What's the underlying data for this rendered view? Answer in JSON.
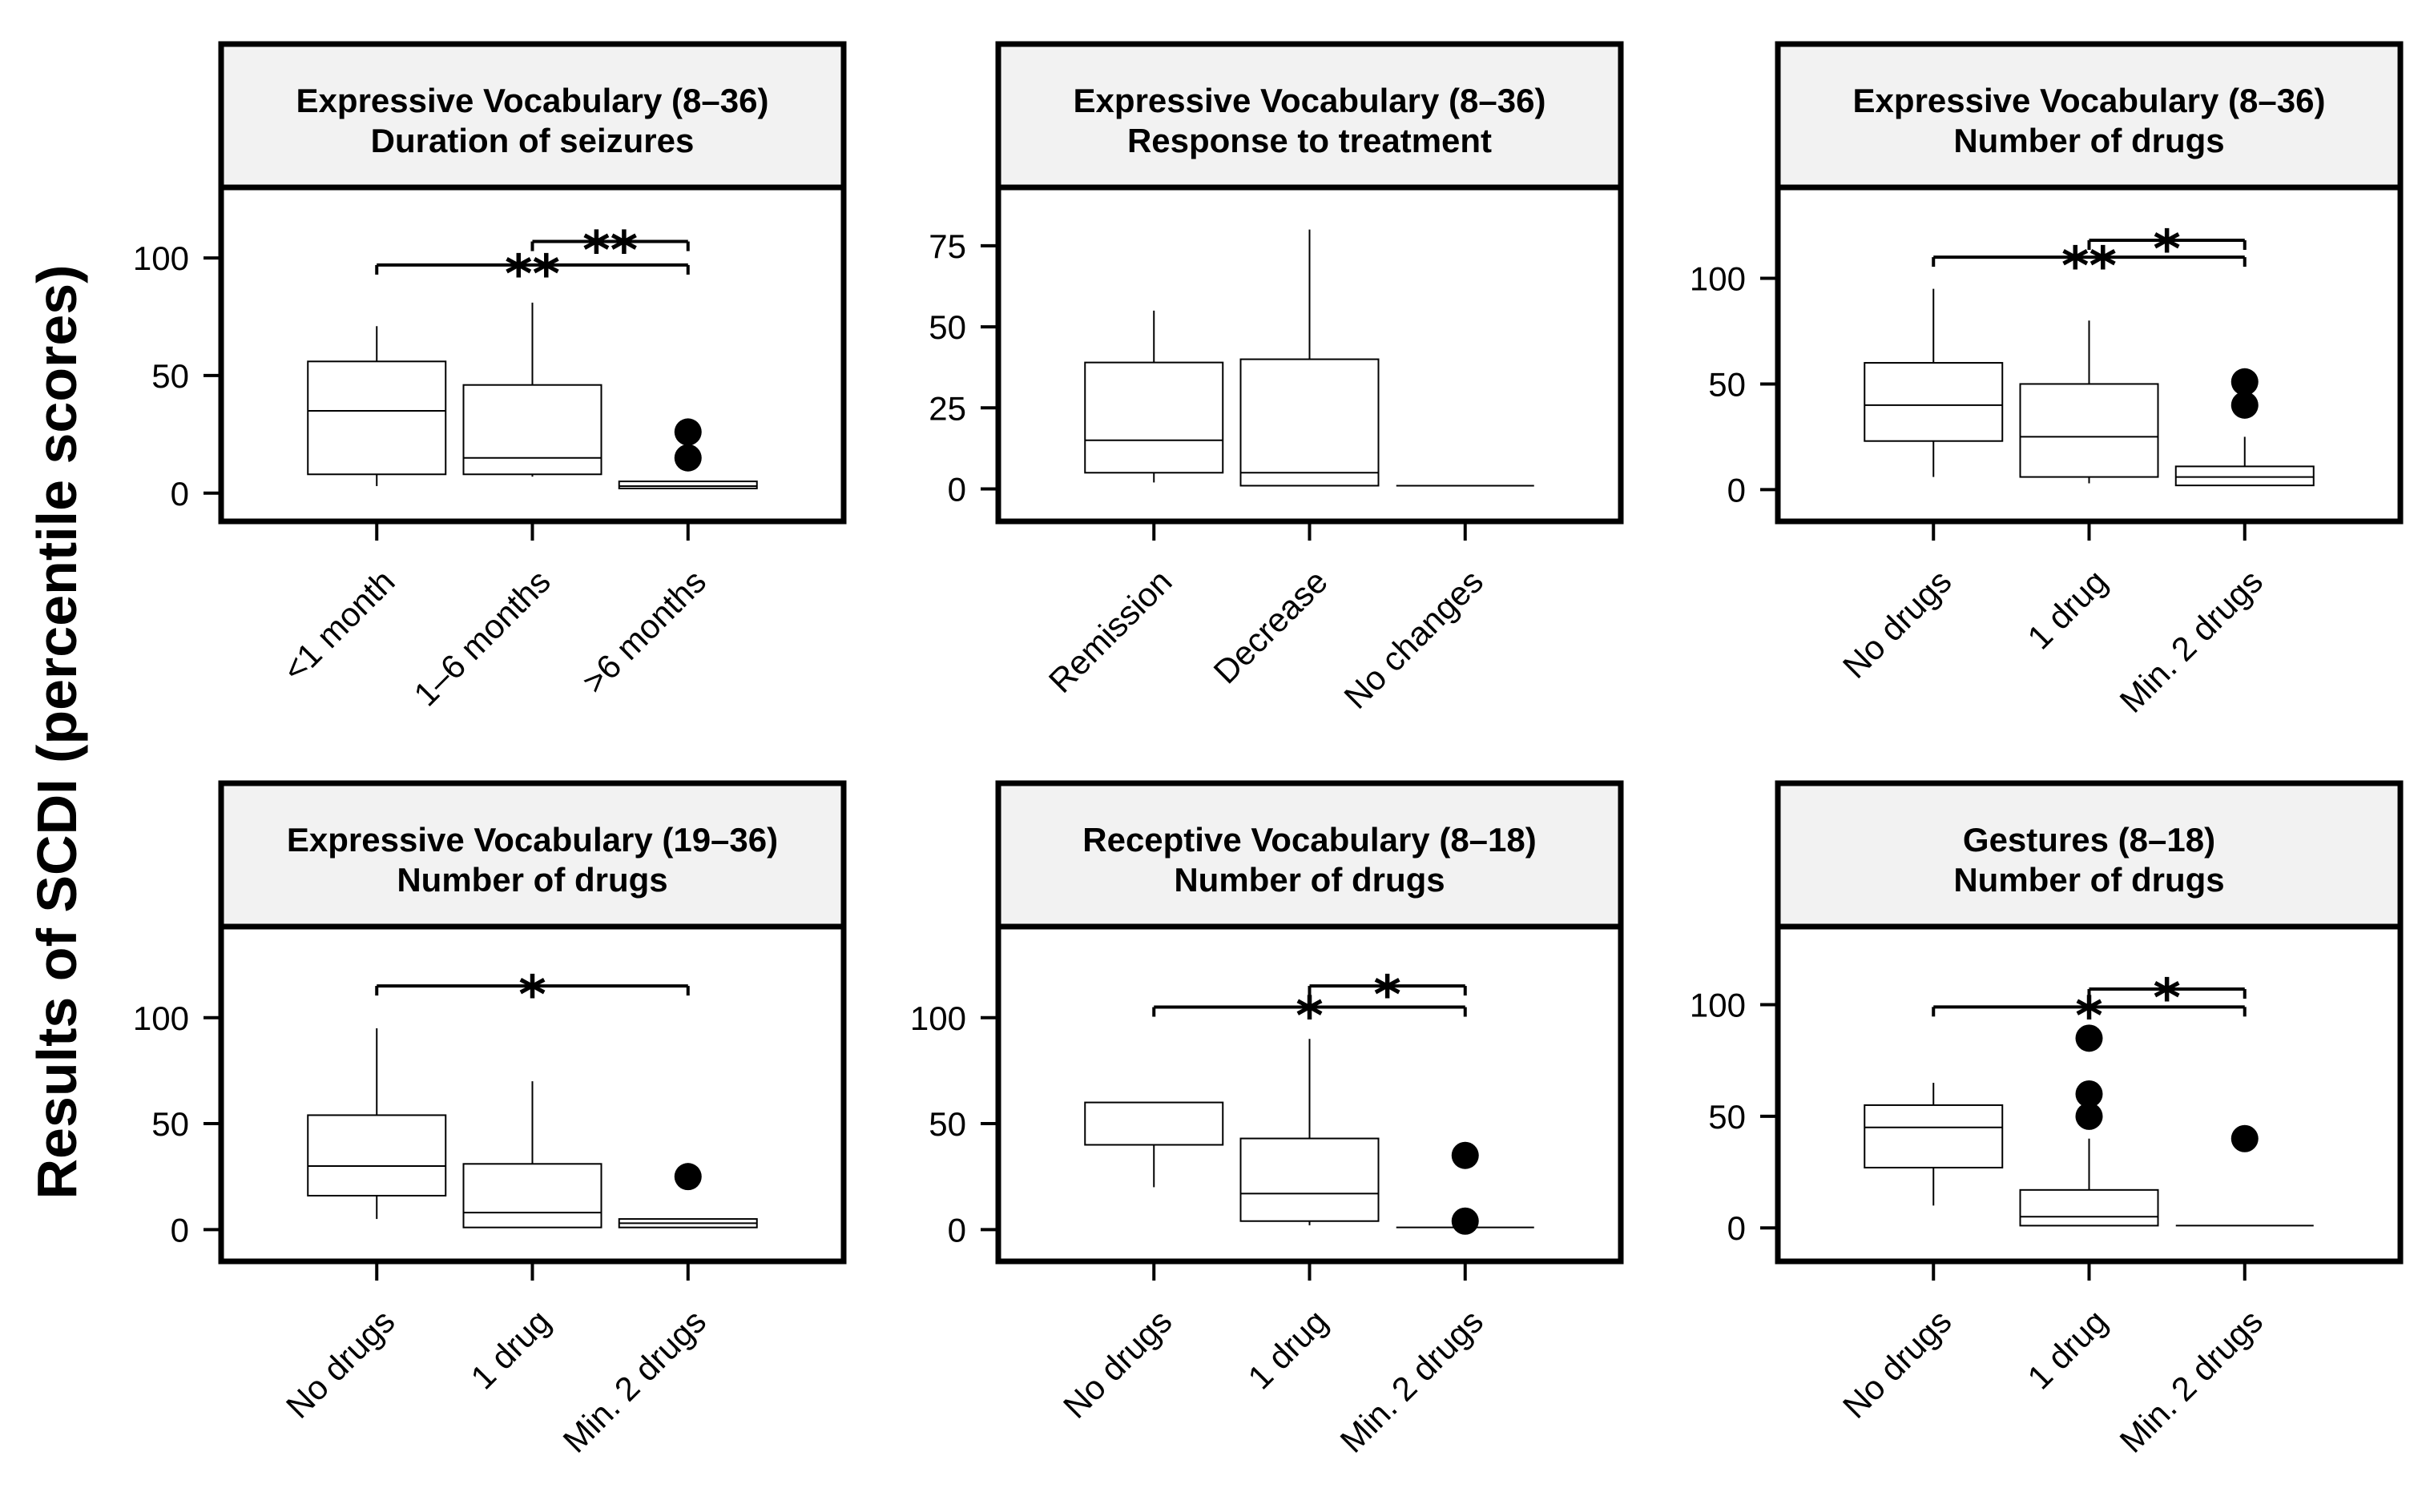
{
  "figure": {
    "ylabel": "Results of SCDI (percentile scores)"
  },
  "chart_data": [
    {
      "type": "boxplot",
      "title": "Expressive Vocabulary (8–36)",
      "subtitle": "Duration of seizures",
      "categories": [
        "<1 month",
        "1–6 months",
        ">6 months"
      ],
      "ylim": [
        -12,
        130
      ],
      "yticks": [
        0,
        50,
        100
      ],
      "boxes": [
        {
          "lower_whisker": 3,
          "q1": 8,
          "median": 35,
          "q3": 56,
          "upper_whisker": 71,
          "outliers": []
        },
        {
          "lower_whisker": 7,
          "q1": 8,
          "median": 15,
          "q3": 46,
          "upper_whisker": 81,
          "outliers": []
        },
        {
          "lower_whisker": 2,
          "q1": 2,
          "median": 3,
          "q3": 5,
          "upper_whisker": 5,
          "outliers": [
            15,
            26
          ]
        }
      ],
      "significance": [
        {
          "from": 0,
          "to": 2,
          "y": 97,
          "label": "**"
        },
        {
          "from": 1,
          "to": 2,
          "y": 107,
          "label": "**"
        }
      ]
    },
    {
      "type": "boxplot",
      "title": "Expressive Vocabulary (8–36)",
      "subtitle": "Response to treatment",
      "categories": [
        "Remission",
        "Decrease",
        "No changes"
      ],
      "ylim": [
        -10,
        93
      ],
      "yticks": [
        0,
        25,
        50,
        75
      ],
      "boxes": [
        {
          "lower_whisker": 2,
          "q1": 5,
          "median": 15,
          "q3": 39,
          "upper_whisker": 55,
          "outliers": []
        },
        {
          "lower_whisker": 1,
          "q1": 1,
          "median": 5,
          "q3": 40,
          "upper_whisker": 80,
          "outliers": []
        },
        {
          "lower_whisker": 1,
          "q1": 1,
          "median": 1,
          "q3": 1,
          "upper_whisker": 1,
          "outliers": []
        }
      ],
      "significance": []
    },
    {
      "type": "boxplot",
      "title": "Expressive Vocabulary (8–36)",
      "subtitle": "Number of drugs",
      "categories": [
        "No drugs",
        "1 drug",
        "Min. 2 drugs"
      ],
      "ylim": [
        -15,
        143
      ],
      "yticks": [
        0,
        50,
        100
      ],
      "boxes": [
        {
          "lower_whisker": 6,
          "q1": 23,
          "median": 40,
          "q3": 60,
          "upper_whisker": 95,
          "outliers": []
        },
        {
          "lower_whisker": 3,
          "q1": 6,
          "median": 25,
          "q3": 50,
          "upper_whisker": 80,
          "outliers": []
        },
        {
          "lower_whisker": 2,
          "q1": 2,
          "median": 6,
          "q3": 11,
          "upper_whisker": 25,
          "outliers": [
            40,
            51
          ]
        }
      ],
      "significance": [
        {
          "from": 0,
          "to": 2,
          "y": 110,
          "label": "**"
        },
        {
          "from": 1,
          "to": 2,
          "y": 118,
          "label": "*"
        }
      ]
    },
    {
      "type": "boxplot",
      "title": "Expressive Vocabulary (19–36)",
      "subtitle": "Number of drugs",
      "categories": [
        "No drugs",
        "1 drug",
        "Min. 2 drugs"
      ],
      "ylim": [
        -15,
        143
      ],
      "yticks": [
        0,
        50,
        100
      ],
      "boxes": [
        {
          "lower_whisker": 5,
          "q1": 16,
          "median": 30,
          "q3": 54,
          "upper_whisker": 95,
          "outliers": []
        },
        {
          "lower_whisker": 1,
          "q1": 1,
          "median": 8,
          "q3": 31,
          "upper_whisker": 70,
          "outliers": []
        },
        {
          "lower_whisker": 1,
          "q1": 1,
          "median": 3,
          "q3": 5,
          "upper_whisker": 5,
          "outliers": [
            25
          ]
        }
      ],
      "significance": [
        {
          "from": 0,
          "to": 2,
          "y": 115,
          "label": "*"
        }
      ]
    },
    {
      "type": "boxplot",
      "title": "Receptive Vocabulary (8–18)",
      "subtitle": "Number of drugs",
      "categories": [
        "No drugs",
        "1 drug",
        "Min. 2 drugs"
      ],
      "ylim": [
        -15,
        143
      ],
      "yticks": [
        0,
        50,
        100
      ],
      "boxes": [
        {
          "lower_whisker": 20,
          "q1": 40,
          "median": 40,
          "q3": 60,
          "upper_whisker": 60,
          "outliers": []
        },
        {
          "lower_whisker": 2,
          "q1": 4,
          "median": 17,
          "q3": 43,
          "upper_whisker": 90,
          "outliers": []
        },
        {
          "lower_whisker": 1,
          "q1": 1,
          "median": 1,
          "q3": 1,
          "upper_whisker": 1,
          "outliers": [
            4,
            35
          ]
        }
      ],
      "significance": [
        {
          "from": 0,
          "to": 2,
          "y": 105,
          "label": "*"
        },
        {
          "from": 1,
          "to": 2,
          "y": 115,
          "label": "*"
        }
      ]
    },
    {
      "type": "boxplot",
      "title": "Gestures (8–18)",
      "subtitle": "Number of drugs",
      "categories": [
        "No drugs",
        "1 drug",
        "Min. 2 drugs"
      ],
      "ylim": [
        -15,
        135
      ],
      "yticks": [
        0,
        50,
        100
      ],
      "boxes": [
        {
          "lower_whisker": 10,
          "q1": 27,
          "median": 45,
          "q3": 55,
          "upper_whisker": 65,
          "outliers": []
        },
        {
          "lower_whisker": 1,
          "q1": 1,
          "median": 5,
          "q3": 17,
          "upper_whisker": 40,
          "outliers": [
            50,
            60,
            85
          ]
        },
        {
          "lower_whisker": 1,
          "q1": 1,
          "median": 1,
          "q3": 1,
          "upper_whisker": 1,
          "outliers": [
            40
          ]
        }
      ],
      "significance": [
        {
          "from": 0,
          "to": 2,
          "y": 99,
          "label": "*"
        },
        {
          "from": 1,
          "to": 2,
          "y": 107,
          "label": "*"
        }
      ]
    }
  ]
}
